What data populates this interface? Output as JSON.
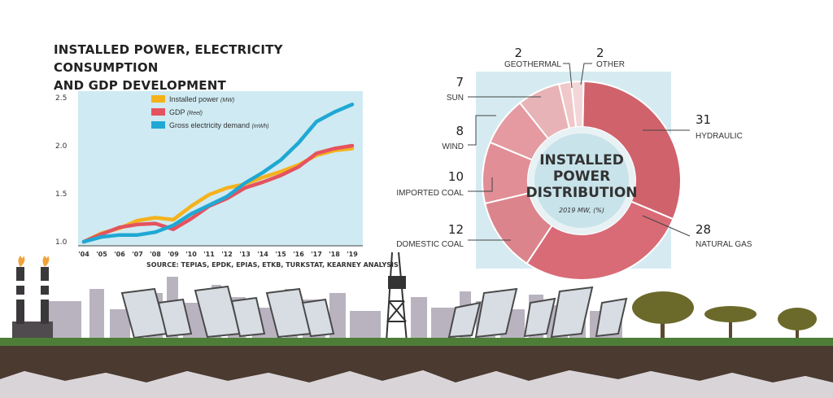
{
  "left_title_line1": "INSTALLED POWER, ELECTRICITY CONSUMPTION",
  "left_title_line2": "AND GDP DEVELOPMENT",
  "source": "SOURCE: TEPIAS, EPDK, EPIAS, ETKB, TURKSTAT, KEARNEY ANALYSIS",
  "colors": {
    "installed": "#f5b21c",
    "gdp": "#e4535f",
    "demand": "#1fa8d4",
    "chart_bg": "#cfeaf2",
    "donut_dark": "#d0626b",
    "donut_light": "#e3a5a9"
  },
  "chart_data": [
    {
      "type": "line",
      "title": "INSTALLED POWER, ELECTRICITY CONSUMPTION AND GDP DEVELOPMENT",
      "x": [
        "'04",
        "'05",
        "'06",
        "'07",
        "'08",
        "'09",
        "'10",
        "'11",
        "'12",
        "'13",
        "'14",
        "'15",
        "'16",
        "'17",
        "'18",
        "'19"
      ],
      "yticks": [
        "1.0",
        "1.5",
        "2.0",
        "2.5"
      ],
      "ylim": [
        1.0,
        2.5
      ],
      "grid": false,
      "legend_position": "top-left",
      "series": [
        {
          "name": "Installed power",
          "unit": "(MW)",
          "color": "#f5b21c",
          "values": [
            1.0,
            1.09,
            1.14,
            1.22,
            1.25,
            1.23,
            1.37,
            1.49,
            1.56,
            1.6,
            1.67,
            1.73,
            1.8,
            1.9,
            1.95,
            1.97
          ]
        },
        {
          "name": "GDP",
          "unit": "(Reel)",
          "color": "#e4535f",
          "values": [
            1.0,
            1.08,
            1.15,
            1.18,
            1.19,
            1.13,
            1.24,
            1.37,
            1.45,
            1.56,
            1.62,
            1.69,
            1.78,
            1.92,
            1.97,
            2.0
          ]
        },
        {
          "name": "Gross electricity demand",
          "unit": "(mWh)",
          "color": "#1fa8d4",
          "values": [
            1.0,
            1.05,
            1.07,
            1.07,
            1.1,
            1.17,
            1.29,
            1.38,
            1.47,
            1.61,
            1.72,
            1.85,
            2.03,
            2.25,
            2.35,
            2.43
          ]
        }
      ]
    },
    {
      "type": "pie",
      "title": "INSTALLED POWER DISTRIBUTION",
      "subtitle": "2019 MW, (%)",
      "slices": [
        {
          "label": "HYDRAULIC",
          "value": 31,
          "color": "#d0626b"
        },
        {
          "label": "NATURAL GAS",
          "value": 28,
          "color": "#d86b76"
        },
        {
          "label": "DOMESTIC COAL",
          "value": 12,
          "color": "#dc848b"
        },
        {
          "label": "IMPORTED COAL",
          "value": 10,
          "color": "#e18e96"
        },
        {
          "label": "WIND",
          "value": 8,
          "color": "#e49aa0"
        },
        {
          "label": "SUN",
          "value": 7,
          "color": "#e8b3b6"
        },
        {
          "label": "GEOTHERMAL",
          "value": 2,
          "color": "#f0c8ca"
        },
        {
          "label": "OTHER",
          "value": 2,
          "color": "#f3d7d8"
        }
      ]
    }
  ]
}
